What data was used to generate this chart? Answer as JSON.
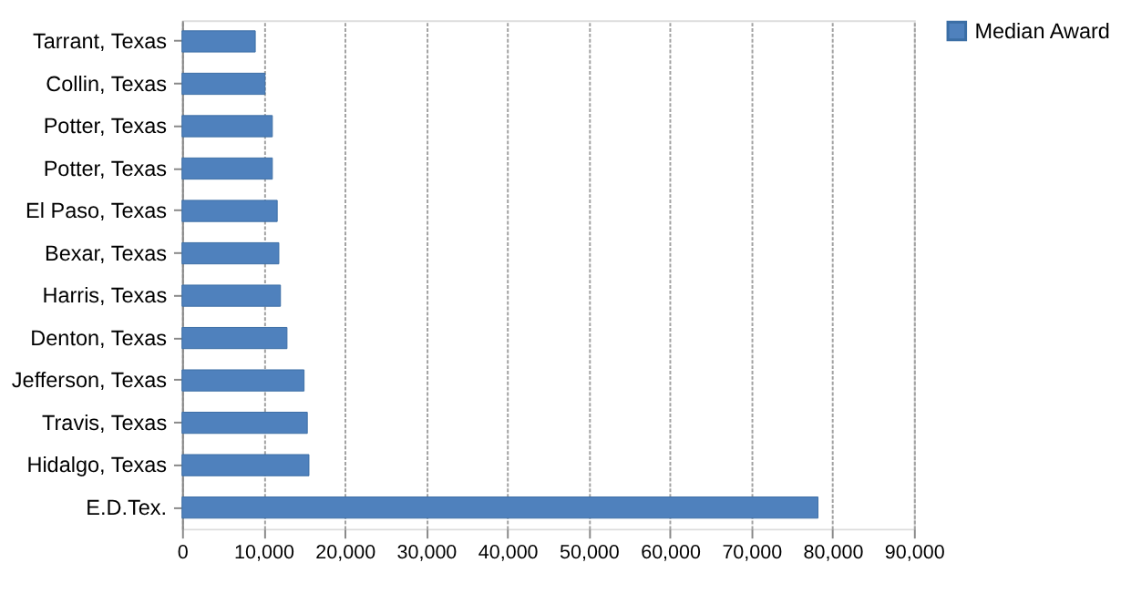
{
  "chart_data": {
    "type": "bar",
    "orientation": "horizontal",
    "categories": [
      "Tarrant, Texas",
      "Collin, Texas",
      "Potter, Texas",
      "Potter, Texas",
      "El Paso, Texas",
      "Bexar, Texas",
      "Harris, Texas",
      "Denton, Texas",
      "Jefferson, Texas",
      "Travis, Texas",
      "Hidalgo, Texas",
      "E.D.Tex."
    ],
    "series": [
      {
        "name": "Median Award",
        "color": "#4f81bd",
        "values": [
          9000,
          10200,
          11100,
          11100,
          11700,
          11900,
          12100,
          12900,
          15000,
          15400,
          15600,
          78200
        ]
      }
    ],
    "xlim": [
      0,
      90000
    ],
    "xticks": [
      {
        "value": 0,
        "label": "0"
      },
      {
        "value": 10000,
        "label": "10,000"
      },
      {
        "value": 20000,
        "label": "20,000"
      },
      {
        "value": 30000,
        "label": "30,000"
      },
      {
        "value": 40000,
        "label": "40,000"
      },
      {
        "value": 50000,
        "label": "50,000"
      },
      {
        "value": 60000,
        "label": "60,000"
      },
      {
        "value": 70000,
        "label": "70,000"
      },
      {
        "value": 80000,
        "label": "80,000"
      },
      {
        "value": 90000,
        "label": "90,000"
      }
    ],
    "grid": "x",
    "legend": "right"
  }
}
